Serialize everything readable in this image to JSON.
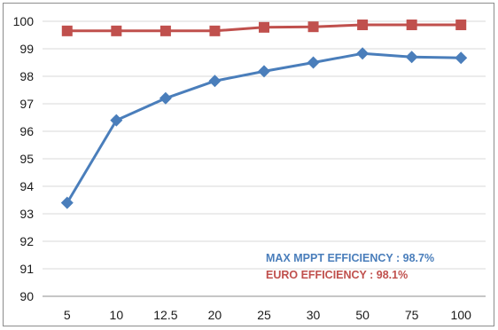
{
  "chart_data": {
    "type": "line",
    "categories": [
      "5",
      "10",
      "12.5",
      "20",
      "25",
      "30",
      "50",
      "75",
      "100"
    ],
    "ylim": [
      90,
      100
    ],
    "yticks": [
      90,
      91,
      92,
      93,
      94,
      95,
      96,
      97,
      98,
      99,
      100
    ],
    "grid": true,
    "series": [
      {
        "color": "#c0504d",
        "marker": "square",
        "values": [
          99.65,
          99.65,
          99.65,
          99.65,
          99.78,
          99.8,
          99.87,
          99.87,
          99.87
        ]
      },
      {
        "color": "#4a7ebb",
        "marker": "diamond",
        "values": [
          93.4,
          96.4,
          97.2,
          97.83,
          98.18,
          98.5,
          98.83,
          98.7,
          98.67
        ]
      }
    ],
    "annotations": [
      {
        "text": "MAX MPPT EFFICIENCY : 98.7%",
        "color": "#4a7ebb"
      },
      {
        "text": "EURO EFFICIENCY : 98.1%",
        "color": "#c0504d"
      }
    ]
  }
}
